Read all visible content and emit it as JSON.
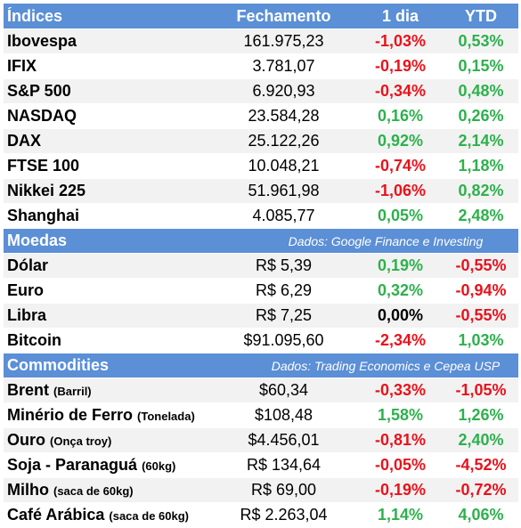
{
  "header": {
    "name": "Índices",
    "close": "Fechamento",
    "day": "1 dia",
    "ytd": "YTD"
  },
  "indices": [
    {
      "name": "Ibovespa",
      "close": "161.975,23",
      "day": "-1,03%",
      "day_sign": "neg",
      "ytd": "0,53%",
      "ytd_sign": "pos"
    },
    {
      "name": "IFIX",
      "close": "3.781,07",
      "day": "-0,19%",
      "day_sign": "neg",
      "ytd": "0,15%",
      "ytd_sign": "pos"
    },
    {
      "name": "S&P 500",
      "close": "6.920,93",
      "day": "-0,34%",
      "day_sign": "neg",
      "ytd": "0,48%",
      "ytd_sign": "pos"
    },
    {
      "name": "NASDAQ",
      "close": "23.584,28",
      "day": "0,16%",
      "day_sign": "pos",
      "ytd": "0,26%",
      "ytd_sign": "pos"
    },
    {
      "name": "DAX",
      "close": "25.122,26",
      "day": "0,92%",
      "day_sign": "pos",
      "ytd": "2,14%",
      "ytd_sign": "pos"
    },
    {
      "name": "FTSE 100",
      "close": "10.048,21",
      "day": "-0,74%",
      "day_sign": "neg",
      "ytd": "1,18%",
      "ytd_sign": "pos"
    },
    {
      "name": "Nikkei 225",
      "close": "51.961,98",
      "day": "-1,06%",
      "day_sign": "neg",
      "ytd": "0,82%",
      "ytd_sign": "pos"
    },
    {
      "name": "Shanghai",
      "close": "4.085,77",
      "day": "0,05%",
      "day_sign": "pos",
      "ytd": "2,48%",
      "ytd_sign": "pos"
    }
  ],
  "moedas_section": {
    "title": "Moedas",
    "source": "Dados: Google Finance e Investing"
  },
  "moedas": [
    {
      "name": "Dólar",
      "close": "R$ 5,39",
      "day": "0,19%",
      "day_sign": "pos",
      "ytd": "-0,55%",
      "ytd_sign": "neg"
    },
    {
      "name": "Euro",
      "close": "R$ 6,29",
      "day": "0,32%",
      "day_sign": "pos",
      "ytd": "-0,94%",
      "ytd_sign": "neg"
    },
    {
      "name": "Libra",
      "close": "R$ 7,25",
      "day": "0,00%",
      "day_sign": "zero",
      "ytd": "-0,55%",
      "ytd_sign": "neg"
    },
    {
      "name": "Bitcoin",
      "close": "$91.095,60",
      "day": "-2,34%",
      "day_sign": "neg",
      "ytd": "1,03%",
      "ytd_sign": "pos"
    }
  ],
  "commodities_section": {
    "title": "Commodities",
    "source": "Dados: Trading Economics e Cepea USP"
  },
  "commodities": [
    {
      "name": "Brent",
      "unit": "(Barril)",
      "close": "$60,34",
      "day": "-0,33%",
      "day_sign": "neg",
      "ytd": "-1,05%",
      "ytd_sign": "neg"
    },
    {
      "name": "Minério de Ferro",
      "unit": "(Tonelada)",
      "close": "$108,48",
      "day": "1,58%",
      "day_sign": "pos",
      "ytd": "1,26%",
      "ytd_sign": "pos"
    },
    {
      "name": "Ouro",
      "unit": "(Onça troy)",
      "close": "$4.456,01",
      "day": "-0,81%",
      "day_sign": "neg",
      "ytd": "2,40%",
      "ytd_sign": "pos"
    },
    {
      "name": "Soja - Paranaguá",
      "unit": "(60kg)",
      "close": "R$ 134,64",
      "day": "-0,05%",
      "day_sign": "neg",
      "ytd": "-4,52%",
      "ytd_sign": "neg"
    },
    {
      "name": "Milho",
      "unit": "(saca de 60kg)",
      "close": "R$ 69,00",
      "day": "-0,19%",
      "day_sign": "neg",
      "ytd": "-0,72%",
      "ytd_sign": "neg"
    },
    {
      "name": "Café Arábica",
      "unit": "(saca de 60kg)",
      "close": "R$ 2.263,04",
      "day": "1,14%",
      "day_sign": "pos",
      "ytd": "4,06%",
      "ytd_sign": "pos"
    }
  ],
  "colors": {
    "header_bg": "#5b8fd6",
    "positive": "#2db14c",
    "negative": "#e8121b",
    "stripe": "#f2f2f2"
  }
}
